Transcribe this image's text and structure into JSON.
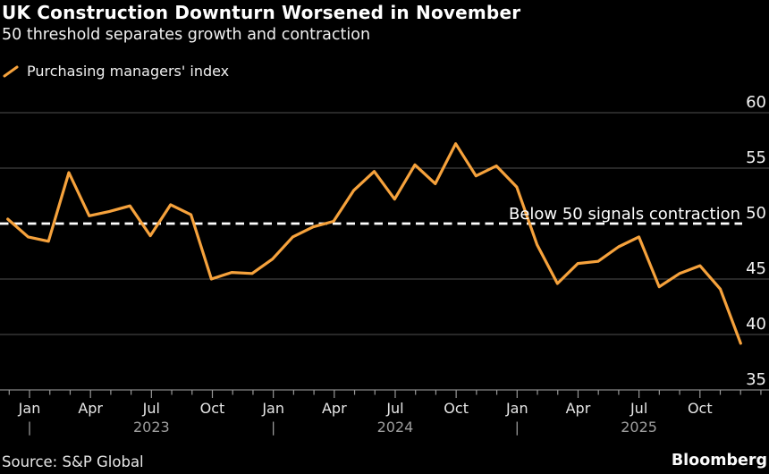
{
  "header": {
    "title": "UK Construction Downturn Worsened in November",
    "subtitle": "50 threshold separates growth and contraction"
  },
  "legend": {
    "label": "Purchasing managers' index"
  },
  "annotation": {
    "text": "Below 50 signals contraction"
  },
  "footer": {
    "source": "Source: S&P Global",
    "brand": "Bloomberg"
  },
  "colors": {
    "background": "#000000",
    "line": "#F6A23C",
    "grid": "#4F4F4F",
    "axis": "#858585",
    "tick": "#989898",
    "threshold": "#FFFFFF",
    "y_label": "#F2F2F2",
    "month_label": "#E6E6E6",
    "dim_label": "#9E9E9E"
  },
  "chart_data": {
    "type": "line",
    "title": "UK Construction Downturn Worsened in November",
    "subtitle": "50 threshold separates growth and contraction",
    "xlabel": "",
    "ylabel": "",
    "ylim": [
      35,
      60
    ],
    "yticks": [
      35,
      40,
      45,
      50,
      55,
      60
    ],
    "grid": "horizontal",
    "legend_position": "top-left",
    "x": [
      "2022-11",
      "2022-12",
      "2023-01",
      "2023-02",
      "2023-03",
      "2023-04",
      "2023-05",
      "2023-06",
      "2023-07",
      "2023-08",
      "2023-09",
      "2023-10",
      "2023-11",
      "2023-12",
      "2024-01",
      "2024-02",
      "2024-03",
      "2024-04",
      "2024-05",
      "2024-06",
      "2024-07",
      "2024-08",
      "2024-09",
      "2024-10",
      "2024-11",
      "2024-12",
      "2025-01",
      "2025-02",
      "2025-03",
      "2025-04",
      "2025-05",
      "2025-06",
      "2025-07",
      "2025-08",
      "2025-09",
      "2025-10",
      "2025-11"
    ],
    "series": [
      {
        "name": "Purchasing managers' index",
        "color": "#F6A23C",
        "values": [
          50.4,
          48.8,
          48.4,
          54.6,
          50.7,
          51.1,
          51.6,
          48.9,
          51.7,
          50.8,
          45.0,
          45.6,
          45.5,
          46.8,
          48.8,
          49.7,
          50.2,
          53.0,
          54.7,
          52.2,
          55.3,
          53.6,
          57.2,
          54.3,
          55.2,
          53.3,
          48.1,
          44.6,
          46.4,
          46.6,
          47.9,
          48.8,
          44.3,
          45.5,
          46.2,
          44.1,
          39.2
        ]
      }
    ],
    "threshold": {
      "value": 50,
      "label": "Below 50 signals contraction",
      "style": "dashed"
    },
    "x_tick_label_cycle": [
      "Jan",
      "Apr",
      "Jul",
      "Oct"
    ],
    "years": [
      "2023",
      "2024",
      "2025"
    ]
  }
}
